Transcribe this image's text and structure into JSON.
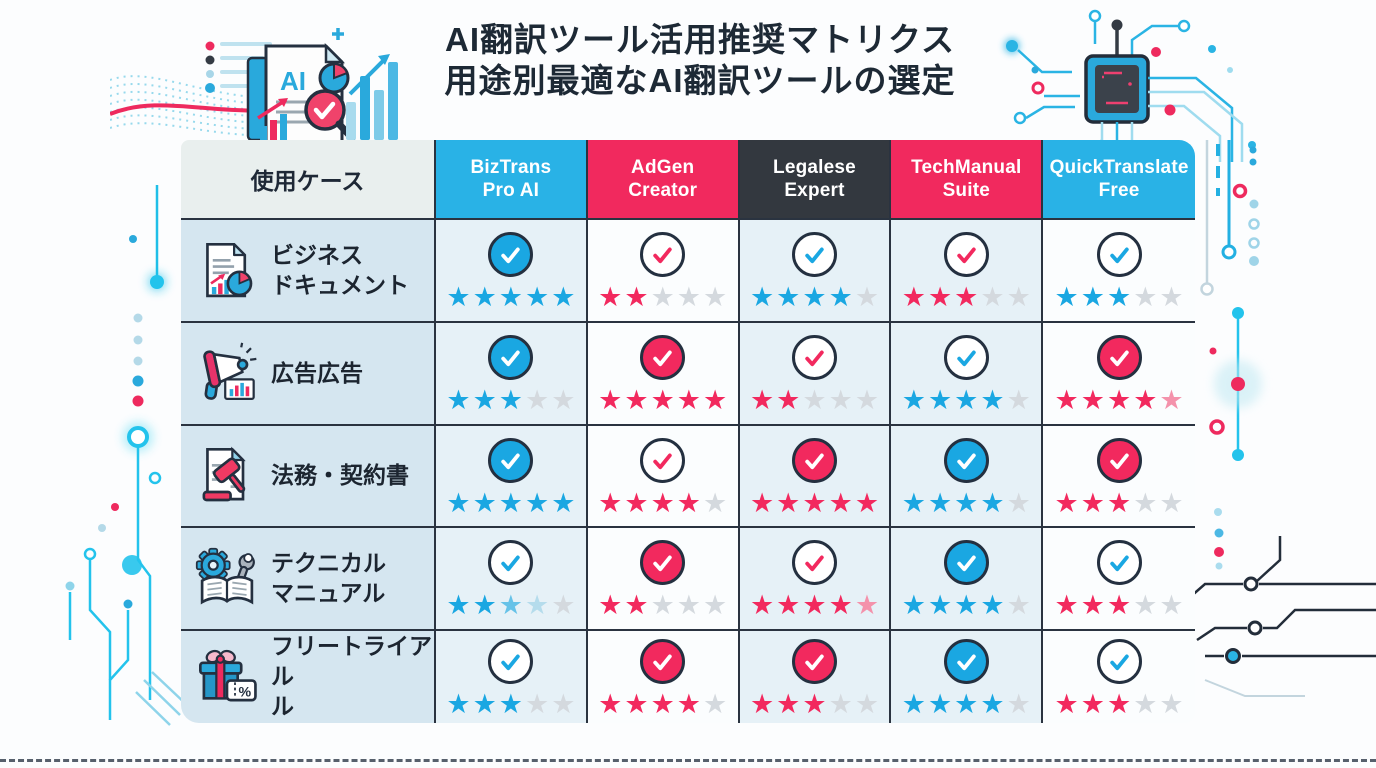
{
  "page": {
    "title_line1": "AI翻訳ツール活用推奨マトリクス",
    "title_line2": "用途別最適なAI翻訳ツールの選定"
  },
  "colors": {
    "blue": "#1aa7e2",
    "pink": "#f2295e",
    "gray": "#d4d9de",
    "blue_mid": "#66c2e8",
    "blue_pale": "#b5dcec",
    "pink_pale": "#f492ab",
    "header_blue": "#29b2e6",
    "header_pink": "#f1295e",
    "header_dark": "#33383f",
    "header_light": "#e9efee",
    "row_label_bg": "#d5e6f0",
    "cell_tint": "#e6f1f7",
    "cell_white": "#fbfdfe",
    "grid_line": "#2a3340",
    "check_ring": "#243040",
    "title_text": "#1d2935"
  },
  "table": {
    "use_case_header": "使用ケース",
    "star_glyph": "★",
    "tools": [
      {
        "id": "biztrans-pro-ai",
        "name": "BizTrans\nPro AI",
        "theme": "blue"
      },
      {
        "id": "adgen-creator",
        "name": "AdGen\nCreator",
        "theme": "pink"
      },
      {
        "id": "legalese-expert",
        "name": "Legalese\nExpert",
        "theme": "dark"
      },
      {
        "id": "techmanual-suite",
        "name": "TechManual\nSuite",
        "theme": "pink"
      },
      {
        "id": "quicktranslate-free",
        "name": "QuickTranslate\nFree",
        "theme": "blue"
      }
    ],
    "rows": [
      {
        "id": "business-documents",
        "label": "ビジネス\nドキュメント",
        "icon": "business-document-icon",
        "cells": [
          {
            "check": "filled",
            "check_color": "blue",
            "rating": 5,
            "stars": [
              "blue",
              "blue",
              "blue",
              "blue",
              "blue"
            ]
          },
          {
            "check": "outline",
            "check_color": "pink",
            "rating": 2,
            "stars": [
              "pink",
              "pink",
              "gray",
              "gray",
              "gray"
            ]
          },
          {
            "check": "outline",
            "check_color": "blue",
            "rating": 4,
            "stars": [
              "blue",
              "blue",
              "blue",
              "blue",
              "gray"
            ]
          },
          {
            "check": "outline",
            "check_color": "pink",
            "rating": 3,
            "stars": [
              "pink",
              "pink",
              "pink",
              "gray",
              "gray"
            ]
          },
          {
            "check": "outline",
            "check_color": "blue",
            "rating": 3,
            "stars": [
              "blue",
              "blue",
              "blue",
              "gray",
              "gray"
            ]
          }
        ]
      },
      {
        "id": "advertising",
        "label": "広告広告",
        "icon": "advertising-megaphone-icon",
        "cells": [
          {
            "check": "filled",
            "check_color": "blue",
            "rating": 3,
            "stars": [
              "blue",
              "blue",
              "blue",
              "gray",
              "gray"
            ]
          },
          {
            "check": "filled",
            "check_color": "pink",
            "rating": 5,
            "stars": [
              "pink",
              "pink",
              "pink",
              "pink",
              "pink"
            ]
          },
          {
            "check": "outline",
            "check_color": "pink",
            "rating": 2,
            "stars": [
              "pink",
              "pink",
              "gray",
              "gray",
              "gray"
            ]
          },
          {
            "check": "outline",
            "check_color": "blue",
            "rating": 4,
            "stars": [
              "blue",
              "blue",
              "blue",
              "blue",
              "gray"
            ]
          },
          {
            "check": "filled",
            "check_color": "pink",
            "rating": 4,
            "stars": [
              "pink",
              "pink",
              "pink",
              "pink",
              "pink_pale"
            ]
          }
        ]
      },
      {
        "id": "legal-contracts",
        "label": "法務・契約書",
        "icon": "legal-gavel-icon",
        "cells": [
          {
            "check": "filled",
            "check_color": "blue",
            "rating": 5,
            "stars": [
              "blue",
              "blue",
              "blue",
              "blue",
              "blue"
            ]
          },
          {
            "check": "outline",
            "check_color": "pink",
            "rating": 4,
            "stars": [
              "pink",
              "pink",
              "pink",
              "pink",
              "gray"
            ]
          },
          {
            "check": "filled",
            "check_color": "pink",
            "rating": 5,
            "stars": [
              "pink",
              "pink",
              "pink",
              "pink",
              "pink"
            ]
          },
          {
            "check": "filled",
            "check_color": "blue",
            "rating": 4,
            "stars": [
              "blue",
              "blue",
              "blue",
              "blue",
              "gray"
            ]
          },
          {
            "check": "filled",
            "check_color": "pink",
            "rating": 3,
            "stars": [
              "pink",
              "pink",
              "pink",
              "gray",
              "gray"
            ]
          }
        ]
      },
      {
        "id": "technical-manual",
        "label": "テクニカル\nマニュアル",
        "icon": "technical-manual-icon",
        "cells": [
          {
            "check": "outline",
            "check_color": "blue",
            "rating": 3,
            "stars": [
              "blue",
              "blue",
              "blue_mid",
              "blue_pale",
              "gray"
            ]
          },
          {
            "check": "filled",
            "check_color": "pink",
            "rating": 2,
            "stars": [
              "pink",
              "pink",
              "gray",
              "gray",
              "gray"
            ]
          },
          {
            "check": "outline",
            "check_color": "pink",
            "rating": 4,
            "stars": [
              "pink",
              "pink",
              "pink",
              "pink",
              "pink_pale"
            ]
          },
          {
            "check": "filled",
            "check_color": "blue",
            "rating": 4,
            "stars": [
              "blue",
              "blue",
              "blue",
              "blue",
              "gray"
            ]
          },
          {
            "check": "outline",
            "check_color": "blue",
            "rating": 3,
            "stars": [
              "pink",
              "pink",
              "pink",
              "gray",
              "gray"
            ]
          }
        ]
      },
      {
        "id": "free-trial",
        "label": "フリートライアル\nル",
        "icon": "free-trial-gift-icon",
        "cells": [
          {
            "check": "outline",
            "check_color": "blue",
            "rating": 3,
            "stars": [
              "blue",
              "blue",
              "blue",
              "gray",
              "gray"
            ]
          },
          {
            "check": "filled",
            "check_color": "pink",
            "rating": 4,
            "stars": [
              "pink",
              "pink",
              "pink",
              "pink",
              "gray"
            ]
          },
          {
            "check": "filled",
            "check_color": "pink",
            "rating": 3,
            "stars": [
              "pink",
              "pink",
              "pink",
              "gray",
              "gray"
            ]
          },
          {
            "check": "filled",
            "check_color": "blue",
            "rating": 4,
            "stars": [
              "blue",
              "blue",
              "blue",
              "blue",
              "gray"
            ]
          },
          {
            "check": "outline",
            "check_color": "blue",
            "rating": 3,
            "stars": [
              "pink",
              "pink",
              "pink",
              "gray",
              "gray"
            ]
          }
        ]
      }
    ]
  }
}
